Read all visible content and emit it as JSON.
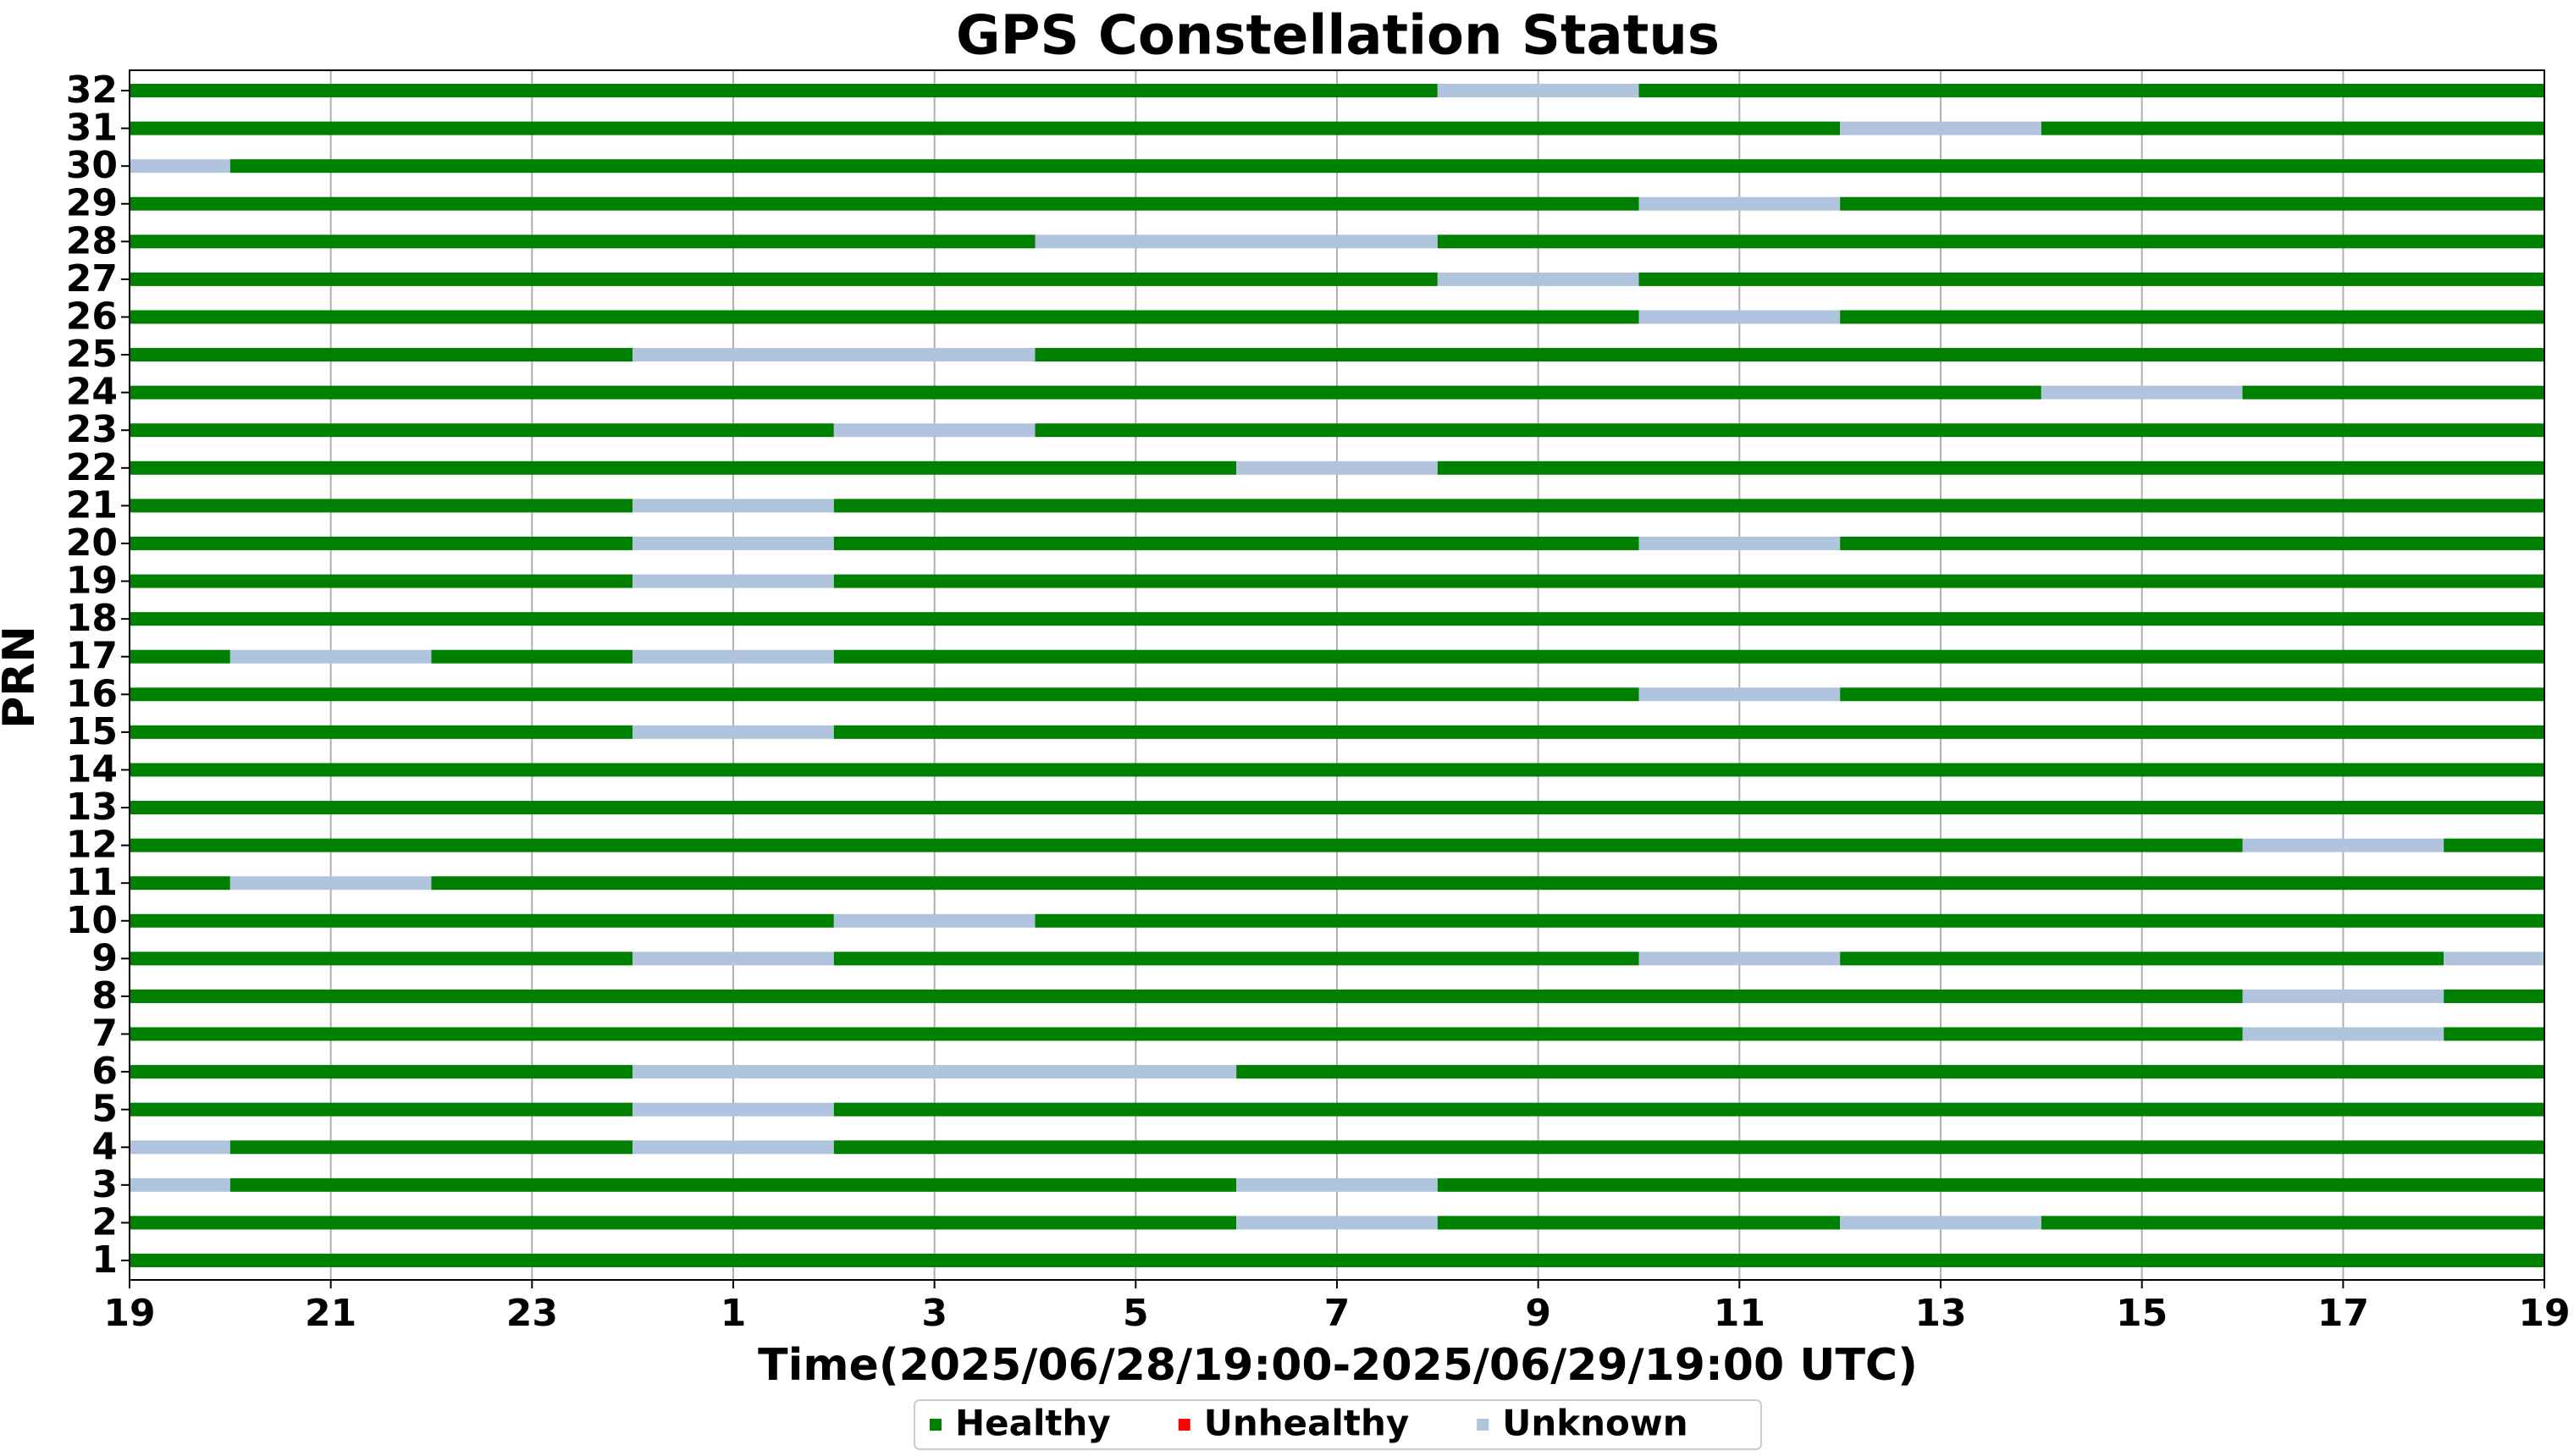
{
  "chart_data": {
    "type": "timeline",
    "title": "GPS Constellation Status",
    "x_label": "Time(2025/06/28/19:00-2025/06/29/19:00 UTC)",
    "y_label": "PRN",
    "xlim": [
      0,
      24
    ],
    "xticks": [
      {
        "value": 0,
        "label": "19"
      },
      {
        "value": 2,
        "label": "21"
      },
      {
        "value": 4,
        "label": "23"
      },
      {
        "value": 6,
        "label": "1"
      },
      {
        "value": 8,
        "label": "3"
      },
      {
        "value": 10,
        "label": "5"
      },
      {
        "value": 12,
        "label": "7"
      },
      {
        "value": 14,
        "label": "9"
      },
      {
        "value": 16,
        "label": "11"
      },
      {
        "value": 18,
        "label": "13"
      },
      {
        "value": 20,
        "label": "15"
      },
      {
        "value": 22,
        "label": "17"
      },
      {
        "value": 24,
        "label": "19"
      }
    ],
    "grid": true,
    "legend": "bottom",
    "series": [
      {
        "name": "Healthy",
        "color": "#008000"
      },
      {
        "name": "Unhealthy",
        "color": "#ff0000"
      },
      {
        "name": "Unknown",
        "color": "#b0c4de"
      }
    ],
    "categories": [
      "1",
      "2",
      "3",
      "4",
      "5",
      "6",
      "7",
      "8",
      "9",
      "10",
      "11",
      "12",
      "13",
      "14",
      "15",
      "16",
      "17",
      "18",
      "19",
      "20",
      "21",
      "22",
      "23",
      "24",
      "25",
      "26",
      "27",
      "28",
      "29",
      "30",
      "31",
      "32"
    ],
    "segments": [
      [
        [
          0,
          24,
          "Healthy"
        ]
      ],
      [
        [
          0,
          11,
          "Healthy"
        ],
        [
          11,
          13,
          "Unknown"
        ],
        [
          13,
          17,
          "Healthy"
        ],
        [
          17,
          19,
          "Unknown"
        ],
        [
          19,
          24,
          "Healthy"
        ]
      ],
      [
        [
          0,
          1,
          "Unknown"
        ],
        [
          1,
          11,
          "Healthy"
        ],
        [
          11,
          13,
          "Unknown"
        ],
        [
          13,
          24,
          "Healthy"
        ]
      ],
      [
        [
          0,
          1,
          "Unknown"
        ],
        [
          1,
          5,
          "Healthy"
        ],
        [
          5,
          7,
          "Unknown"
        ],
        [
          7,
          24,
          "Healthy"
        ]
      ],
      [
        [
          0,
          5,
          "Healthy"
        ],
        [
          5,
          7,
          "Unknown"
        ],
        [
          7,
          24,
          "Healthy"
        ]
      ],
      [
        [
          0,
          5,
          "Healthy"
        ],
        [
          5,
          11,
          "Unknown"
        ],
        [
          11,
          24,
          "Healthy"
        ]
      ],
      [
        [
          0,
          21,
          "Healthy"
        ],
        [
          21,
          23,
          "Unknown"
        ],
        [
          23,
          24,
          "Healthy"
        ]
      ],
      [
        [
          0,
          21,
          "Healthy"
        ],
        [
          21,
          23,
          "Unknown"
        ],
        [
          23,
          24,
          "Healthy"
        ]
      ],
      [
        [
          0,
          5,
          "Healthy"
        ],
        [
          5,
          7,
          "Unknown"
        ],
        [
          7,
          15,
          "Healthy"
        ],
        [
          15,
          17,
          "Unknown"
        ],
        [
          17,
          23,
          "Healthy"
        ],
        [
          23,
          24,
          "Unknown"
        ]
      ],
      [
        [
          0,
          7,
          "Healthy"
        ],
        [
          7,
          9,
          "Unknown"
        ],
        [
          9,
          24,
          "Healthy"
        ]
      ],
      [
        [
          0,
          1,
          "Healthy"
        ],
        [
          1,
          3,
          "Unknown"
        ],
        [
          3,
          24,
          "Healthy"
        ]
      ],
      [
        [
          0,
          21,
          "Healthy"
        ],
        [
          21,
          23,
          "Unknown"
        ],
        [
          23,
          24,
          "Healthy"
        ]
      ],
      [
        [
          0,
          24,
          "Healthy"
        ]
      ],
      [
        [
          0,
          24,
          "Healthy"
        ]
      ],
      [
        [
          0,
          5,
          "Healthy"
        ],
        [
          5,
          7,
          "Unknown"
        ],
        [
          7,
          24,
          "Healthy"
        ]
      ],
      [
        [
          0,
          15,
          "Healthy"
        ],
        [
          15,
          17,
          "Unknown"
        ],
        [
          17,
          24,
          "Healthy"
        ]
      ],
      [
        [
          0,
          1,
          "Healthy"
        ],
        [
          1,
          3,
          "Unknown"
        ],
        [
          3,
          5,
          "Healthy"
        ],
        [
          5,
          7,
          "Unknown"
        ],
        [
          7,
          24,
          "Healthy"
        ]
      ],
      [
        [
          0,
          24,
          "Healthy"
        ]
      ],
      [
        [
          0,
          5,
          "Healthy"
        ],
        [
          5,
          7,
          "Unknown"
        ],
        [
          7,
          24,
          "Healthy"
        ]
      ],
      [
        [
          0,
          5,
          "Healthy"
        ],
        [
          5,
          7,
          "Unknown"
        ],
        [
          7,
          15,
          "Healthy"
        ],
        [
          15,
          17,
          "Unknown"
        ],
        [
          17,
          24,
          "Healthy"
        ]
      ],
      [
        [
          0,
          5,
          "Healthy"
        ],
        [
          5,
          7,
          "Unknown"
        ],
        [
          7,
          24,
          "Healthy"
        ]
      ],
      [
        [
          0,
          11,
          "Healthy"
        ],
        [
          11,
          13,
          "Unknown"
        ],
        [
          13,
          24,
          "Healthy"
        ]
      ],
      [
        [
          0,
          7,
          "Healthy"
        ],
        [
          7,
          9,
          "Unknown"
        ],
        [
          9,
          24,
          "Healthy"
        ]
      ],
      [
        [
          0,
          19,
          "Healthy"
        ],
        [
          19,
          21,
          "Unknown"
        ],
        [
          21,
          24,
          "Healthy"
        ]
      ],
      [
        [
          0,
          5,
          "Healthy"
        ],
        [
          5,
          9,
          "Unknown"
        ],
        [
          9,
          24,
          "Healthy"
        ]
      ],
      [
        [
          0,
          15,
          "Healthy"
        ],
        [
          15,
          17,
          "Unknown"
        ],
        [
          17,
          24,
          "Healthy"
        ]
      ],
      [
        [
          0,
          13,
          "Healthy"
        ],
        [
          13,
          15,
          "Unknown"
        ],
        [
          15,
          24,
          "Healthy"
        ]
      ],
      [
        [
          0,
          9,
          "Healthy"
        ],
        [
          9,
          13,
          "Unknown"
        ],
        [
          13,
          24,
          "Healthy"
        ]
      ],
      [
        [
          0,
          15,
          "Healthy"
        ],
        [
          15,
          17,
          "Unknown"
        ],
        [
          17,
          24,
          "Healthy"
        ]
      ],
      [
        [
          0,
          1,
          "Unknown"
        ],
        [
          1,
          24,
          "Healthy"
        ]
      ],
      [
        [
          0,
          17,
          "Healthy"
        ],
        [
          17,
          19,
          "Unknown"
        ],
        [
          19,
          24,
          "Healthy"
        ]
      ],
      [
        [
          0,
          13,
          "Healthy"
        ],
        [
          13,
          15,
          "Unknown"
        ],
        [
          15,
          24,
          "Healthy"
        ]
      ]
    ]
  }
}
